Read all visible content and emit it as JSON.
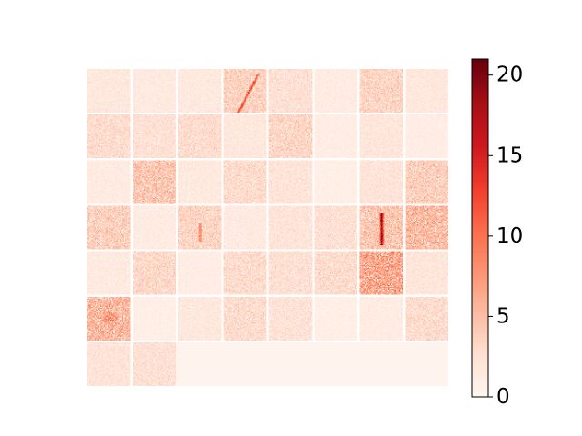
{
  "chart_data": {
    "type": "heatmap",
    "title": "",
    "xlabel": "",
    "ylabel": "",
    "grid_rows": 7,
    "grid_cols": 8,
    "tile_count": 50,
    "tile_resolution": 44,
    "colormap": "Reds",
    "colormap_stops": [
      "#fff5f0",
      "#fee0d2",
      "#fcbba1",
      "#fc9272",
      "#fb6a4a",
      "#ef3b2c",
      "#cb181d",
      "#a50f15",
      "#67000d"
    ],
    "separator_color": "#ffffff",
    "empty_fill_value": 0.3,
    "colorbar": {
      "vmin": 0,
      "vmax": 21,
      "ticks": [
        0,
        5,
        10,
        15,
        20
      ],
      "tick_labels": [
        "0",
        "5",
        "10",
        "15",
        "20"
      ]
    },
    "tiles": [
      {
        "row": 0,
        "col": 0,
        "mean": 1.8,
        "feature": "none"
      },
      {
        "row": 0,
        "col": 1,
        "mean": 1.5,
        "feature": "none"
      },
      {
        "row": 0,
        "col": 2,
        "mean": 1.6,
        "feature": "none"
      },
      {
        "row": 0,
        "col": 3,
        "mean": 3.8,
        "feature": "diagonal"
      },
      {
        "row": 0,
        "col": 4,
        "mean": 2.6,
        "feature": "none"
      },
      {
        "row": 0,
        "col": 5,
        "mean": 1.3,
        "feature": "none"
      },
      {
        "row": 0,
        "col": 6,
        "mean": 3.6,
        "feature": "none"
      },
      {
        "row": 0,
        "col": 7,
        "mean": 1.8,
        "feature": "none"
      },
      {
        "row": 1,
        "col": 0,
        "mean": 3.0,
        "feature": "none"
      },
      {
        "row": 1,
        "col": 1,
        "mean": 2.5,
        "feature": "none"
      },
      {
        "row": 1,
        "col": 2,
        "mean": 3.0,
        "feature": "none"
      },
      {
        "row": 1,
        "col": 3,
        "mean": 1.8,
        "feature": "none"
      },
      {
        "row": 1,
        "col": 4,
        "mean": 3.5,
        "feature": "none"
      },
      {
        "row": 1,
        "col": 5,
        "mean": 1.1,
        "feature": "none"
      },
      {
        "row": 1,
        "col": 6,
        "mean": 2.0,
        "feature": "none"
      },
      {
        "row": 1,
        "col": 7,
        "mean": 1.1,
        "feature": "none"
      },
      {
        "row": 2,
        "col": 0,
        "mean": 1.4,
        "feature": "none"
      },
      {
        "row": 2,
        "col": 1,
        "mean": 4.6,
        "feature": "none"
      },
      {
        "row": 2,
        "col": 2,
        "mean": 1.6,
        "feature": "none"
      },
      {
        "row": 2,
        "col": 3,
        "mean": 3.0,
        "feature": "none"
      },
      {
        "row": 2,
        "col": 4,
        "mean": 2.2,
        "feature": "none"
      },
      {
        "row": 2,
        "col": 5,
        "mean": 0.9,
        "feature": "none"
      },
      {
        "row": 2,
        "col": 6,
        "mean": 2.2,
        "feature": "none"
      },
      {
        "row": 2,
        "col": 7,
        "mean": 4.0,
        "feature": "none"
      },
      {
        "row": 3,
        "col": 0,
        "mean": 4.0,
        "feature": "none"
      },
      {
        "row": 3,
        "col": 1,
        "mean": 1.3,
        "feature": "none"
      },
      {
        "row": 3,
        "col": 2,
        "mean": 3.6,
        "feature": "spot"
      },
      {
        "row": 3,
        "col": 3,
        "mean": 1.5,
        "feature": "none"
      },
      {
        "row": 3,
        "col": 4,
        "mean": 2.2,
        "feature": "none"
      },
      {
        "row": 3,
        "col": 5,
        "mean": 2.6,
        "feature": "none"
      },
      {
        "row": 3,
        "col": 6,
        "mean": 4.6,
        "feature": "vertical"
      },
      {
        "row": 3,
        "col": 7,
        "mean": 5.4,
        "feature": "none"
      },
      {
        "row": 4,
        "col": 0,
        "mean": 1.5,
        "feature": "none"
      },
      {
        "row": 4,
        "col": 1,
        "mean": 3.3,
        "feature": "none"
      },
      {
        "row": 4,
        "col": 2,
        "mean": 1.1,
        "feature": "none"
      },
      {
        "row": 4,
        "col": 3,
        "mean": 3.0,
        "feature": "none"
      },
      {
        "row": 4,
        "col": 4,
        "mean": 2.6,
        "feature": "none"
      },
      {
        "row": 4,
        "col": 5,
        "mean": 3.0,
        "feature": "none"
      },
      {
        "row": 4,
        "col": 6,
        "mean": 6.8,
        "feature": "none"
      },
      {
        "row": 4,
        "col": 7,
        "mean": 2.0,
        "feature": "none"
      },
      {
        "row": 5,
        "col": 0,
        "mean": 5.6,
        "feature": "blob"
      },
      {
        "row": 5,
        "col": 1,
        "mean": 0.9,
        "feature": "none"
      },
      {
        "row": 5,
        "col": 2,
        "mean": 1.8,
        "feature": "none"
      },
      {
        "row": 5,
        "col": 3,
        "mean": 3.0,
        "feature": "none"
      },
      {
        "row": 5,
        "col": 4,
        "mean": 2.4,
        "feature": "none"
      },
      {
        "row": 5,
        "col": 5,
        "mean": 0.9,
        "feature": "none"
      },
      {
        "row": 5,
        "col": 6,
        "mean": 1.3,
        "feature": "none"
      },
      {
        "row": 5,
        "col": 7,
        "mean": 3.0,
        "feature": "none"
      },
      {
        "row": 6,
        "col": 0,
        "mean": 2.2,
        "feature": "none"
      },
      {
        "row": 6,
        "col": 1,
        "mean": 2.6,
        "feature": "none"
      }
    ]
  }
}
